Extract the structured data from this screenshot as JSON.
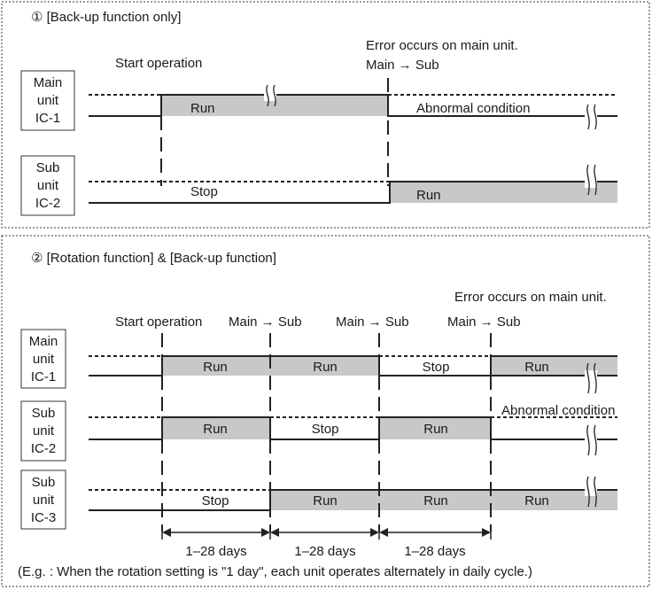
{
  "section1": {
    "title": "① [Back-up function only]",
    "start": "Start operation",
    "error": "Error occurs on main unit.",
    "switch": "Main → Sub",
    "units": [
      {
        "lines": [
          "Main",
          "unit",
          "IC-1"
        ]
      },
      {
        "lines": [
          "Sub",
          "unit",
          "IC-2"
        ]
      }
    ],
    "labels": {
      "main_run": "Run",
      "abnormal": "Abnormal condition",
      "sub_stop": "Stop",
      "sub_run": "Run"
    }
  },
  "section2": {
    "title": "② [Rotation function] & [Back-up function]",
    "error": "Error occurs on main unit.",
    "start": "Start operation",
    "switches": [
      "Main → Sub",
      "Main → Sub",
      "Main → Sub"
    ],
    "units": [
      {
        "lines": [
          "Main",
          "unit",
          "IC-1"
        ],
        "states": [
          "Run",
          "Run",
          "Stop",
          "Run"
        ]
      },
      {
        "lines": [
          "Sub",
          "unit",
          "IC-2"
        ],
        "states": [
          "Run",
          "Stop",
          "Run"
        ],
        "extra": "Abnormal condition"
      },
      {
        "lines": [
          "Sub",
          "unit",
          "IC-3"
        ],
        "states": [
          "Stop",
          "Run",
          "Run",
          "Run"
        ]
      }
    ],
    "durations": [
      "1–28 days",
      "1–28 days",
      "1–28 days"
    ],
    "note": "(E.g. : When the rotation setting is  \"1 day\", each unit operates alternately in daily cycle.)"
  }
}
